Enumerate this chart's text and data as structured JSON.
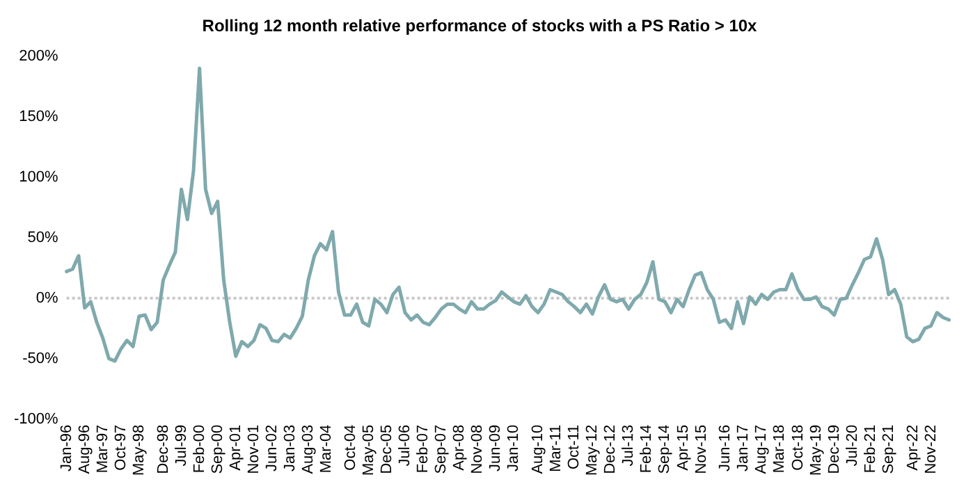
{
  "chart_data": {
    "type": "line",
    "title": "Rolling 12 month relative performance of stocks with a PS Ratio > 10x",
    "categories": [
      "Jan-96",
      null,
      null,
      "Aug-96",
      null,
      null,
      "Mar-97",
      null,
      null,
      "Oct-97",
      null,
      null,
      "May-98",
      null,
      null,
      null,
      "Dec-98",
      null,
      null,
      "Jul-99",
      null,
      null,
      "Feb-00",
      null,
      null,
      "Sep-00",
      null,
      null,
      "Apr-01",
      null,
      null,
      "Nov-01",
      null,
      null,
      "Jun-02",
      null,
      null,
      "Jan-03",
      null,
      null,
      "Aug-03",
      null,
      null,
      "Mar-04",
      null,
      null,
      null,
      "Oct-04",
      null,
      null,
      "May-05",
      null,
      null,
      "Dec-05",
      null,
      null,
      "Jul-06",
      null,
      null,
      "Feb-07",
      null,
      null,
      "Sep-07",
      null,
      null,
      "Apr-08",
      null,
      null,
      "Nov-08",
      null,
      null,
      "Jun-09",
      null,
      null,
      "Jan-10",
      null,
      null,
      null,
      "Aug-10",
      null,
      null,
      "Mar-11",
      null,
      null,
      "Oct-11",
      null,
      null,
      "May-12",
      null,
      null,
      "Dec-12",
      null,
      null,
      "Jul-13",
      null,
      null,
      "Feb-14",
      null,
      null,
      "Sep-14",
      null,
      null,
      "Apr-15",
      null,
      null,
      "Nov-15",
      null,
      null,
      null,
      "Jun-16",
      null,
      null,
      "Jan-17",
      null,
      null,
      "Aug-17",
      null,
      null,
      "Mar-18",
      null,
      null,
      "Oct-18",
      null,
      null,
      "May-19",
      null,
      null,
      "Dec-19",
      null,
      null,
      "Jul-20",
      null,
      null,
      "Feb-21",
      null,
      null,
      "Sep-21",
      null,
      null,
      null,
      "Apr-22",
      null,
      null,
      "Nov-22",
      null,
      null,
      null
    ],
    "series": [
      {
        "color": "#7fa9ad",
        "values": [
          22,
          24,
          35,
          -8,
          -3,
          -20,
          -33,
          -50,
          -52,
          -42,
          -35,
          -40,
          -15,
          -14,
          -26,
          -20,
          15,
          27,
          38,
          90,
          65,
          105,
          190,
          90,
          70,
          80,
          15,
          -20,
          -48,
          -36,
          -40,
          -35,
          -22,
          -25,
          -35,
          -36,
          -30,
          -33,
          -25,
          -15,
          15,
          35,
          45,
          40,
          55,
          5,
          -14,
          -14,
          -5,
          -20,
          -23,
          -1,
          -5,
          -12,
          3,
          9,
          -12,
          -18,
          -14,
          -20,
          -22,
          -16,
          -9,
          -5,
          -5,
          -9,
          -12,
          -3,
          -9,
          -9,
          -5,
          -2,
          5,
          1,
          -3,
          -5,
          2,
          -7,
          -12,
          -5,
          7,
          5,
          3,
          -3,
          -7,
          -12,
          -5,
          -13,
          1,
          11,
          -1,
          -3,
          -1,
          -9,
          -1,
          3,
          13,
          30,
          -1,
          -3,
          -12,
          -1,
          -7,
          7,
          19,
          21,
          7,
          -1,
          -20,
          -18,
          -25,
          -3,
          -21,
          1,
          -5,
          3,
          -1,
          5,
          7,
          7,
          20,
          7,
          -1,
          -1,
          1,
          -7,
          -9,
          -14,
          -1,
          0,
          11,
          21,
          32,
          34,
          49,
          32,
          3,
          7,
          -5,
          -32,
          -36,
          -34,
          -25,
          -23,
          -12,
          -16,
          -18
        ]
      }
    ],
    "ylim": [
      -100,
      200
    ],
    "yticks": [
      {
        "value": -100,
        "label": "-100%"
      },
      {
        "value": -50,
        "label": "-50%"
      },
      {
        "value": 0,
        "label": "0%"
      },
      {
        "value": 50,
        "label": "50%"
      },
      {
        "value": 100,
        "label": "100%"
      },
      {
        "value": 150,
        "label": "150%"
      },
      {
        "value": 200,
        "label": "200%"
      }
    ],
    "ref_lines": [
      {
        "axis": "y",
        "value": 0,
        "color": "#c8c8c8",
        "line_style": "dotted"
      }
    ],
    "grid": false,
    "legend": false,
    "marker": "none",
    "line_style": "solid"
  }
}
